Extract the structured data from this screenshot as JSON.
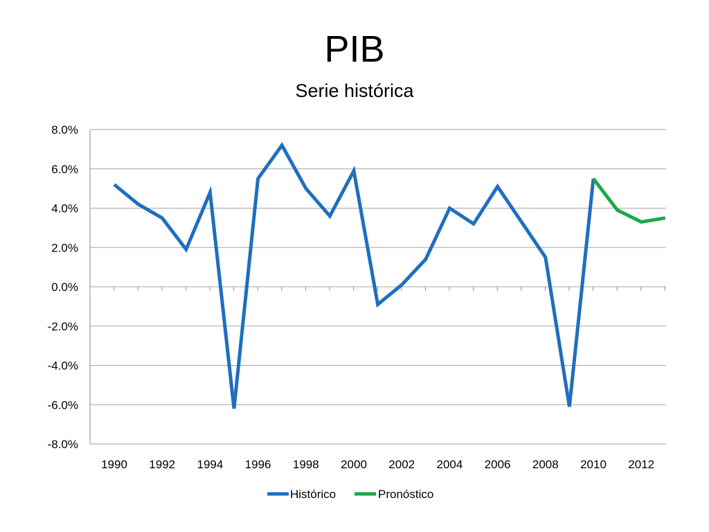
{
  "slide": {
    "title": "PIB",
    "subtitle": "Serie histórica"
  },
  "chart_data": {
    "type": "line",
    "x": [
      1990,
      1991,
      1992,
      1993,
      1994,
      1995,
      1996,
      1997,
      1998,
      1999,
      2000,
      2001,
      2002,
      2003,
      2004,
      2005,
      2006,
      2007,
      2008,
      2009,
      2010,
      2011,
      2012,
      2013
    ],
    "x_tick_labels": [
      "1990",
      "1992",
      "1994",
      "1996",
      "1998",
      "2000",
      "2002",
      "2004",
      "2006",
      "2008",
      "2010",
      "2012"
    ],
    "y_tick_labels": [
      "8.0%",
      "6.0%",
      "4.0%",
      "2.0%",
      "0.0%",
      "-2.0%",
      "-4.0%",
      "-6.0%",
      "-8.0%"
    ],
    "ylim": [
      -8,
      8
    ],
    "xlim": [
      1990,
      2013
    ],
    "grid": true,
    "legend_position": "bottom",
    "series": [
      {
        "name": "Histórico",
        "color": "#1f6fbf",
        "x": [
          1990,
          1991,
          1992,
          1993,
          1994,
          1995,
          1996,
          1997,
          1998,
          1999,
          2000,
          2001,
          2002,
          2003,
          2004,
          2005,
          2006,
          2007,
          2008,
          2009,
          2010
        ],
        "values": [
          5.2,
          4.2,
          3.5,
          1.9,
          4.8,
          -6.2,
          5.5,
          7.2,
          5.0,
          3.6,
          5.9,
          -0.9,
          0.1,
          1.4,
          4.0,
          3.2,
          5.1,
          3.3,
          1.5,
          -6.1,
          5.5
        ]
      },
      {
        "name": "Pronóstico",
        "color": "#1aa84a",
        "x": [
          2010,
          2011,
          2012,
          2013
        ],
        "values": [
          5.5,
          3.9,
          3.3,
          3.5
        ]
      }
    ]
  }
}
